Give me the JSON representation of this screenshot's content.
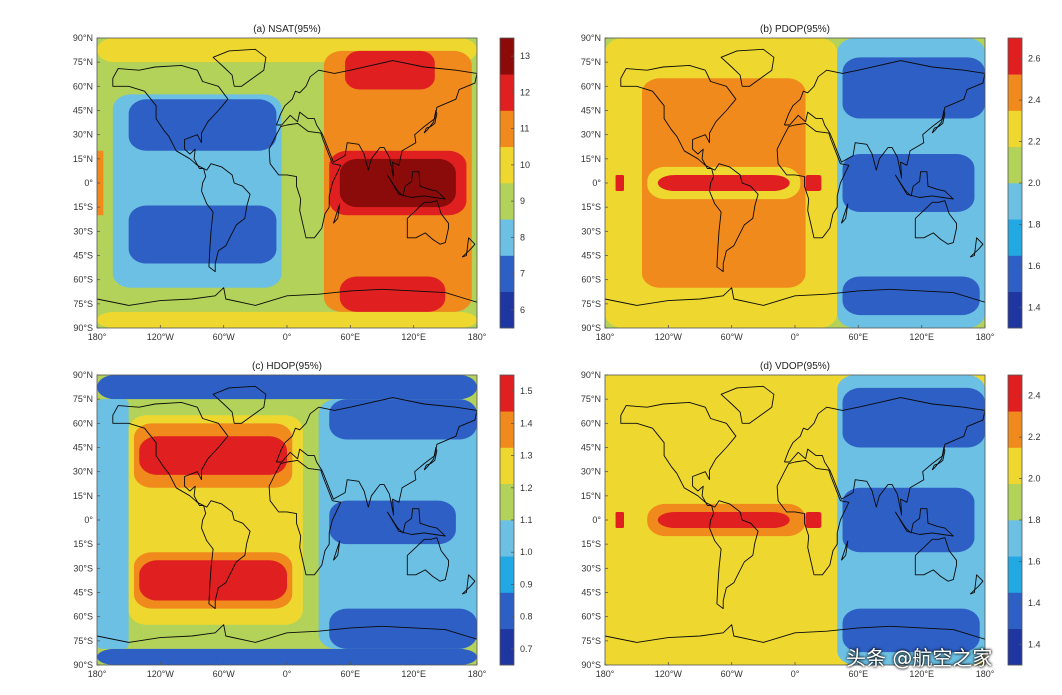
{
  "watermark": "头条 @航空之家",
  "colors": {
    "d_red": "#8b0a0a",
    "red": "#e02020",
    "orange": "#f08a1c",
    "yellow": "#eed830",
    "yellowgreen": "#b2d25a",
    "lightblue": "#6cc0e4",
    "cyan": "#22a8e2",
    "blue": "#2e5fc4",
    "navy": "#1f35a0",
    "land": "#0a0a0a"
  },
  "chart_data": [
    {
      "type": "heatmap",
      "title": "(a) NSAT(95%)",
      "x_ticks": [
        "180°",
        "120°W",
        "60°W",
        "0°",
        "60°E",
        "120°E",
        "180°"
      ],
      "y_ticks": [
        "90°N",
        "75°N",
        "60°N",
        "45°N",
        "30°N",
        "15°N",
        "0°",
        "15°S",
        "30°S",
        "45°S",
        "60°S",
        "75°S",
        "90°S"
      ],
      "xlim": [
        -180,
        180
      ],
      "ylim": [
        -90,
        90
      ],
      "colorbar": {
        "ticks": [
          "6",
          "7",
          "8",
          "9",
          "10",
          "11",
          "12",
          "13"
        ],
        "range": [
          5.5,
          13.5
        ],
        "colors": [
          "#1f35a0",
          "#2e5fc4",
          "#6cc0e4",
          "#b2d25a",
          "#eed830",
          "#f08a1c",
          "#e02020",
          "#8b0a0a"
        ]
      },
      "background": "#b2d25a",
      "regions": [
        {
          "lon": [
            -180,
            180
          ],
          "lat": [
            75,
            90
          ],
          "color": "#eed830"
        },
        {
          "lon": [
            -180,
            180
          ],
          "lat": [
            -90,
            -80
          ],
          "color": "#eed830"
        },
        {
          "lon": [
            -180,
            -174
          ],
          "lat": [
            -20,
            20
          ],
          "color": "#f08a1c"
        },
        {
          "lon": [
            -165,
            -5
          ],
          "lat": [
            -65,
            55
          ],
          "color": "#6cc0e4"
        },
        {
          "lon": [
            -150,
            -10
          ],
          "lat": [
            20,
            52
          ],
          "color": "#2e5fc4"
        },
        {
          "lon": [
            -150,
            -10
          ],
          "lat": [
            -50,
            -14
          ],
          "color": "#2e5fc4"
        },
        {
          "lon": [
            35,
            175
          ],
          "lat": [
            -80,
            82
          ],
          "color": "#f08a1c"
        },
        {
          "lon": [
            55,
            140
          ],
          "lat": [
            58,
            82
          ],
          "color": "#e02020"
        },
        {
          "lon": [
            40,
            170
          ],
          "lat": [
            -20,
            20
          ],
          "color": "#e02020"
        },
        {
          "lon": [
            50,
            160
          ],
          "lat": [
            -15,
            15
          ],
          "color": "#8b0a0a"
        },
        {
          "lon": [
            50,
            150
          ],
          "lat": [
            -80,
            -58
          ],
          "color": "#e02020"
        }
      ]
    },
    {
      "type": "heatmap",
      "title": "(b) PDOP(95%)",
      "x_ticks": [
        "180°",
        "120°W",
        "60°W",
        "0°",
        "60°E",
        "120°E",
        "180°"
      ],
      "y_ticks": [
        "90°N",
        "75°N",
        "60°N",
        "45°N",
        "30°N",
        "15°N",
        "0°",
        "15°S",
        "30°S",
        "45°S",
        "60°S",
        "75°S",
        "90°S"
      ],
      "xlim": [
        -180,
        180
      ],
      "ylim": [
        -90,
        90
      ],
      "colorbar": {
        "ticks": [
          "1.4",
          "1.6",
          "1.8",
          "2.0",
          "2.2",
          "2.4",
          "2.6"
        ],
        "range": [
          1.3,
          2.7
        ],
        "colors": [
          "#1f35a0",
          "#2e5fc4",
          "#22a8e2",
          "#6cc0e4",
          "#b2d25a",
          "#eed830",
          "#f08a1c",
          "#e02020"
        ]
      },
      "background": "#b2d25a",
      "regions": [
        {
          "lon": [
            -180,
            40
          ],
          "lat": [
            -90,
            90
          ],
          "color": "#eed830"
        },
        {
          "lon": [
            -145,
            10
          ],
          "lat": [
            -65,
            65
          ],
          "color": "#f08a1c"
        },
        {
          "lon": [
            -140,
            5
          ],
          "lat": [
            -10,
            10
          ],
          "color": "#eed830"
        },
        {
          "lon": [
            -130,
            -5
          ],
          "lat": [
            -5,
            5
          ],
          "color": "#e02020"
        },
        {
          "lon": [
            -170,
            -162
          ],
          "lat": [
            -5,
            5
          ],
          "color": "#e02020"
        },
        {
          "lon": [
            10,
            25
          ],
          "lat": [
            -5,
            5
          ],
          "color": "#e02020"
        },
        {
          "lon": [
            40,
            180
          ],
          "lat": [
            -90,
            90
          ],
          "color": "#6cc0e4"
        },
        {
          "lon": [
            45,
            180
          ],
          "lat": [
            40,
            78
          ],
          "color": "#2e5fc4"
        },
        {
          "lon": [
            45,
            170
          ],
          "lat": [
            -18,
            18
          ],
          "color": "#2e5fc4"
        },
        {
          "lon": [
            45,
            175
          ],
          "lat": [
            -82,
            -58
          ],
          "color": "#2e5fc4"
        }
      ]
    },
    {
      "type": "heatmap",
      "title": "(c) HDOP(95%)",
      "x_ticks": [
        "180°",
        "120°W",
        "60°W",
        "0°",
        "60°E",
        "120°E",
        "180°"
      ],
      "y_ticks": [
        "90°N",
        "75°N",
        "60°N",
        "45°N",
        "30°N",
        "15°N",
        "0°",
        "15°S",
        "30°S",
        "45°S",
        "60°S",
        "75°S",
        "90°S"
      ],
      "xlim": [
        -180,
        180
      ],
      "ylim": [
        -90,
        90
      ],
      "colorbar": {
        "ticks": [
          "0.7",
          "0.8",
          "0.9",
          "1.0",
          "1.1",
          "1.2",
          "1.3",
          "1.4",
          "1.5"
        ],
        "range": [
          0.7,
          1.5
        ],
        "colors": [
          "#1f35a0",
          "#2e5fc4",
          "#22a8e2",
          "#6cc0e4",
          "#b2d25a",
          "#eed830",
          "#f08a1c",
          "#e02020"
        ]
      },
      "background": "#b2d25a",
      "regions": [
        {
          "lon": [
            -180,
            180
          ],
          "lat": [
            75,
            90
          ],
          "color": "#2e5fc4"
        },
        {
          "lon": [
            -180,
            180
          ],
          "lat": [
            -90,
            -80
          ],
          "color": "#2e5fc4"
        },
        {
          "lon": [
            -180,
            -150
          ],
          "lat": [
            -80,
            75
          ],
          "color": "#6cc0e4"
        },
        {
          "lon": [
            -150,
            15
          ],
          "lat": [
            -65,
            65
          ],
          "color": "#eed830"
        },
        {
          "lon": [
            -145,
            5
          ],
          "lat": [
            20,
            60
          ],
          "color": "#f08a1c"
        },
        {
          "lon": [
            -145,
            5
          ],
          "lat": [
            -55,
            -20
          ],
          "color": "#f08a1c"
        },
        {
          "lon": [
            -140,
            0
          ],
          "lat": [
            28,
            52
          ],
          "color": "#e02020"
        },
        {
          "lon": [
            -140,
            0
          ],
          "lat": [
            -50,
            -25
          ],
          "color": "#e02020"
        },
        {
          "lon": [
            30,
            180
          ],
          "lat": [
            -80,
            75
          ],
          "color": "#6cc0e4"
        },
        {
          "lon": [
            40,
            180
          ],
          "lat": [
            50,
            75
          ],
          "color": "#2e5fc4"
        },
        {
          "lon": [
            40,
            160
          ],
          "lat": [
            -15,
            12
          ],
          "color": "#2e5fc4"
        },
        {
          "lon": [
            40,
            180
          ],
          "lat": [
            -80,
            -55
          ],
          "color": "#2e5fc4"
        }
      ]
    },
    {
      "type": "heatmap",
      "title": "(d) VDOP(95%)",
      "x_ticks": [
        "180°",
        "120°W",
        "60°W",
        "0°",
        "60°E",
        "120°E",
        "180°"
      ],
      "y_ticks": [
        "90°N",
        "75°N",
        "60°N",
        "45°N",
        "30°N",
        "15°N",
        "0°",
        "15°S",
        "30°S",
        "45°S",
        "60°S",
        "75°S",
        "90°S"
      ],
      "xlim": [
        -180,
        180
      ],
      "ylim": [
        -90,
        90
      ],
      "colorbar": {
        "ticks": [
          "1.4",
          "1.4",
          "1.6",
          "1.8",
          "2.0",
          "2.2",
          "2.4"
        ],
        "range": [
          1.2,
          2.4
        ],
        "colors": [
          "#1f35a0",
          "#2e5fc4",
          "#22a8e2",
          "#6cc0e4",
          "#b2d25a",
          "#eed830",
          "#f08a1c",
          "#e02020"
        ]
      },
      "background": "#eed830",
      "regions": [
        {
          "lon": [
            -180,
            40
          ],
          "lat": [
            -90,
            90
          ],
          "color": "#eed830"
        },
        {
          "lon": [
            -130,
            -5
          ],
          "lat": [
            -5,
            5
          ],
          "color": "#e02020"
        },
        {
          "lon": [
            -170,
            -162
          ],
          "lat": [
            -5,
            5
          ],
          "color": "#e02020"
        },
        {
          "lon": [
            10,
            25
          ],
          "lat": [
            -5,
            5
          ],
          "color": "#e02020"
        },
        {
          "lon": [
            -140,
            10
          ],
          "lat": [
            -10,
            10
          ],
          "color": "#f08a1c"
        },
        {
          "lon": [
            -130,
            -5
          ],
          "lat": [
            -5,
            5
          ],
          "color": "#e02020"
        },
        {
          "lon": [
            40,
            180
          ],
          "lat": [
            -90,
            90
          ],
          "color": "#6cc0e4"
        },
        {
          "lon": [
            45,
            180
          ],
          "lat": [
            45,
            82
          ],
          "color": "#2e5fc4"
        },
        {
          "lon": [
            45,
            170
          ],
          "lat": [
            -20,
            20
          ],
          "color": "#2e5fc4"
        },
        {
          "lon": [
            45,
            175
          ],
          "lat": [
            -82,
            -55
          ],
          "color": "#2e5fc4"
        }
      ]
    }
  ]
}
